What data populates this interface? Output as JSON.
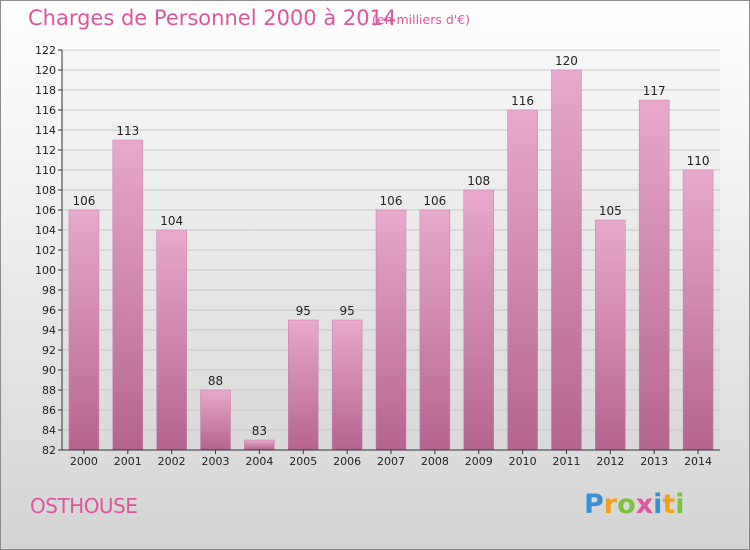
{
  "header": {
    "title": "Charges de Personnel 2000 à 2014",
    "subtitle": "(en milliers d'€)"
  },
  "footer": {
    "commune": "OSTHOUSE",
    "logo": "Proxiti"
  },
  "colors": {
    "title": "#e0559e",
    "bar_top": "#e7a9cc",
    "bar_bottom": "#b5648f",
    "grid": "#c8c8c8"
  },
  "chart_data": {
    "type": "bar",
    "title": "Charges de Personnel 2000 à 2014",
    "subtitle": "(en milliers d'€)",
    "xlabel": "",
    "ylabel": "",
    "ylim": [
      82,
      122
    ],
    "yticks": [
      82,
      84,
      86,
      88,
      90,
      92,
      94,
      96,
      98,
      100,
      102,
      104,
      106,
      108,
      110,
      112,
      114,
      116,
      118,
      120,
      122
    ],
    "grid": true,
    "categories": [
      "2000",
      "2001",
      "2002",
      "2003",
      "2004",
      "2005",
      "2006",
      "2007",
      "2008",
      "2009",
      "2010",
      "2011",
      "2012",
      "2013",
      "2014"
    ],
    "values": [
      106,
      113,
      104,
      88,
      83,
      95,
      95,
      106,
      106,
      108,
      116,
      120,
      105,
      117,
      110
    ]
  }
}
